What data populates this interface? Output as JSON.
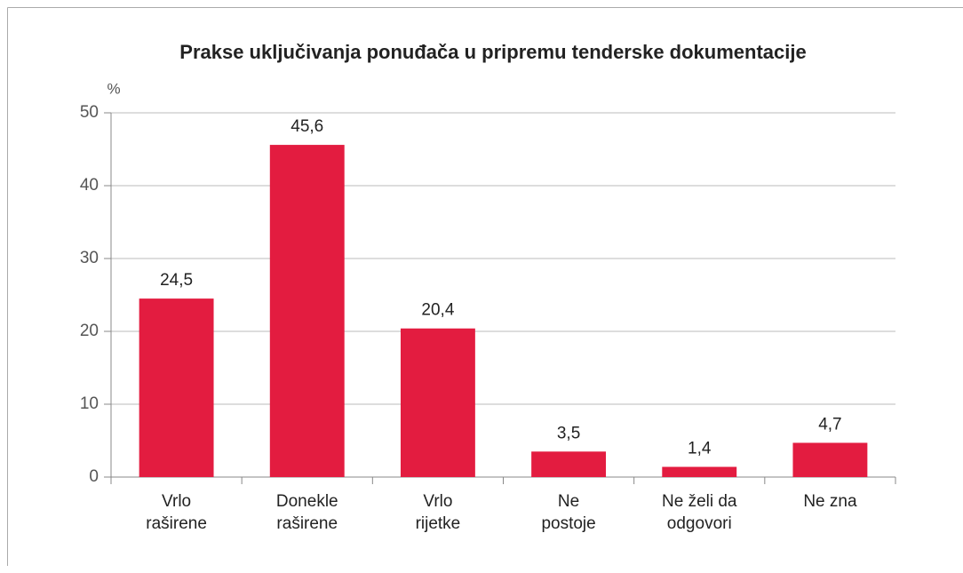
{
  "chart_data": {
    "type": "bar",
    "title": "Prakse uključivanja ponuđača u pripremu tenderske dokumentacije",
    "y_label": "%",
    "categories": [
      [
        "Vrlo",
        "raširene"
      ],
      [
        "Donekle",
        "raširene"
      ],
      [
        "Vrlo",
        "rijetke"
      ],
      [
        "Ne",
        "postoje"
      ],
      [
        "Ne želi da",
        "odgovori"
      ],
      [
        "Ne zna"
      ]
    ],
    "values": [
      24.5,
      45.6,
      20.4,
      3.5,
      1.4,
      4.7
    ],
    "value_labels": [
      "24,5",
      "45,6",
      "20,4",
      "3,5",
      "1,4",
      "4,7"
    ],
    "color": "#e31c40",
    "ylim": [
      0,
      50
    ],
    "yticks": [
      0,
      10,
      20,
      30,
      40,
      50
    ],
    "grid": true
  }
}
